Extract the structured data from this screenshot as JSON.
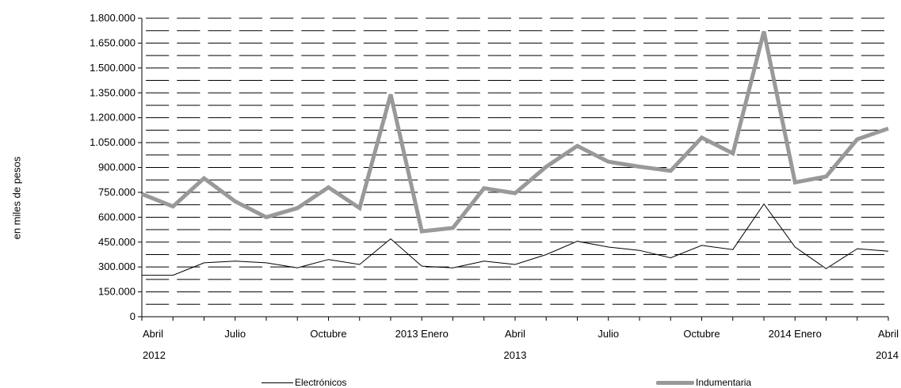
{
  "chart_data": {
    "type": "line",
    "ylabel": "en miles de pesos",
    "ylim": [
      0,
      1800000
    ],
    "yticks": [
      0,
      150000,
      300000,
      450000,
      600000,
      750000,
      900000,
      1050000,
      1200000,
      1350000,
      1500000,
      1650000,
      1800000
    ],
    "ytick_labels": [
      "0",
      "150.000",
      "300.000",
      "450.000",
      "600.000",
      "750.000",
      "900.000",
      "1.050.000",
      "1.200.000",
      "1.350.000",
      "1.500.000",
      "1.650.000",
      "1.800.000"
    ],
    "x": [
      "2012-04",
      "2012-05",
      "2012-06",
      "2012-07",
      "2012-08",
      "2012-09",
      "2012-10",
      "2012-11",
      "2012-12",
      "2013-01",
      "2013-02",
      "2013-03",
      "2013-04",
      "2013-05",
      "2013-06",
      "2013-07",
      "2013-08",
      "2013-09",
      "2013-10",
      "2013-11",
      "2013-12",
      "2014-01",
      "2014-02",
      "2014-03",
      "2014-04"
    ],
    "xtick_labels": [
      {
        "label": "Abril",
        "year": "2012"
      },
      {
        "label": "Julio",
        "year": ""
      },
      {
        "label": "Octubre",
        "year": ""
      },
      {
        "label": "2013 Enero",
        "year": ""
      },
      {
        "label": "Abril",
        "year": "2013"
      },
      {
        "label": "Julio",
        "year": ""
      },
      {
        "label": "Octubre",
        "year": ""
      },
      {
        "label": "2014 Enero",
        "year": ""
      },
      {
        "label": "Abril",
        "year": "2014"
      }
    ],
    "series": [
      {
        "name": "Electrónicos",
        "color": "#000000",
        "values": [
          250000,
          250000,
          325000,
          335000,
          325000,
          295000,
          345000,
          315000,
          470000,
          305000,
          295000,
          335000,
          315000,
          375000,
          455000,
          420000,
          400000,
          355000,
          430000,
          405000,
          680000,
          420000,
          290000,
          410000,
          395000
        ]
      },
      {
        "name": "Indumentaria",
        "color": "#999999",
        "values": [
          740000,
          665000,
          835000,
          695000,
          600000,
          655000,
          780000,
          655000,
          1340000,
          515000,
          535000,
          775000,
          745000,
          905000,
          1030000,
          935000,
          905000,
          880000,
          1080000,
          985000,
          1720000,
          810000,
          845000,
          1070000,
          1135000
        ]
      }
    ],
    "grid": true,
    "legend": "bottom"
  }
}
